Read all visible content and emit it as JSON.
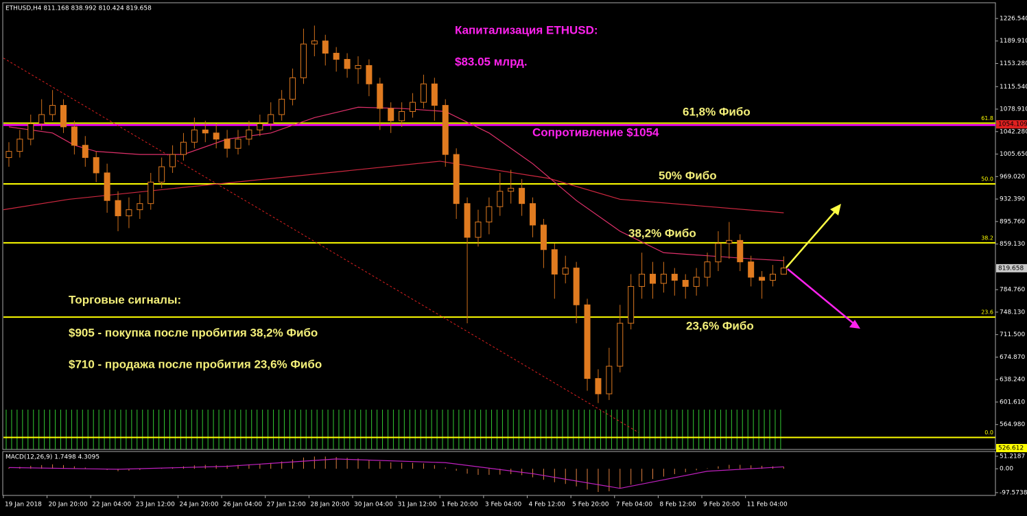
{
  "header": "ETHUSD,H4 811.168 838.992 810.424 819.658",
  "annotations": {
    "cap_title": "Капитализация ETHUSD:",
    "cap_value": "$83.05 млрд.",
    "fib618": "61,8% Фибо",
    "resistance": "Сопротивление $1054",
    "fib50": "50% Фибо",
    "fib382": "38,2% Фибо",
    "fib236": "23,6% Фибо",
    "signals_title": "Торговые сигналы:",
    "signal_buy": "$905 - покупка после пробития 38,2% Фибо",
    "signal_sell": "$710 - продажа после пробития 23,6% Фибо"
  },
  "chart_data": {
    "type": "candlestick",
    "categories": [
      "19 Jan 2018",
      null,
      null,
      null,
      "20 Jan 20:00",
      null,
      null,
      null,
      "22 Jan 04:00",
      null,
      null,
      null,
      "23 Jan 12:00",
      null,
      null,
      null,
      "24 Jan 20:00",
      null,
      null,
      null,
      "26 Jan 04:00",
      null,
      null,
      null,
      "27 Jan 12:00",
      null,
      null,
      null,
      "28 Jan 20:00",
      null,
      null,
      null,
      "30 Jan 04:00",
      null,
      null,
      null,
      "31 Jan 12:00",
      null,
      null,
      null,
      "1 Feb 20:00",
      null,
      null,
      null,
      "3 Feb 04:00",
      null,
      null,
      null,
      "4 Feb 12:00",
      null,
      null,
      null,
      "5 Feb 20:00",
      null,
      null,
      null,
      "7 Feb 04:00",
      null,
      null,
      null,
      "8 Feb 12:00",
      null,
      null,
      null,
      "9 Feb 20:00",
      null,
      null,
      null,
      "11 Feb 04:00",
      null,
      null,
      null
    ],
    "open": [
      1000,
      1010,
      1030,
      1055,
      1070,
      1085,
      1050,
      1020,
      1000,
      975,
      930,
      905,
      915,
      925,
      960,
      985,
      1005,
      1025,
      1045,
      1040,
      1030,
      1015,
      1030,
      1045,
      1055,
      1070,
      1095,
      1130,
      1185,
      1190,
      1170,
      1160,
      1145,
      1150,
      1120,
      1080,
      1060,
      1075,
      1090,
      1120,
      1085,
      1005,
      925,
      870,
      895,
      920,
      945,
      950,
      925,
      890,
      850,
      810,
      820,
      760,
      640,
      615,
      660,
      730,
      790,
      810,
      795,
      810,
      800,
      790,
      805,
      830,
      860,
      865,
      830,
      805,
      800,
      810
    ],
    "high": [
      1025,
      1045,
      1070,
      1095,
      1110,
      1095,
      1060,
      1035,
      1010,
      990,
      945,
      935,
      940,
      975,
      1000,
      1020,
      1040,
      1065,
      1060,
      1055,
      1045,
      1045,
      1060,
      1070,
      1090,
      1110,
      1145,
      1210,
      1215,
      1200,
      1180,
      1170,
      1165,
      1160,
      1130,
      1090,
      1090,
      1105,
      1135,
      1130,
      1095,
      1015,
      935,
      915,
      935,
      975,
      980,
      965,
      935,
      900,
      860,
      840,
      830,
      770,
      655,
      690,
      760,
      810,
      845,
      830,
      830,
      820,
      810,
      820,
      845,
      880,
      895,
      875,
      840,
      815,
      825,
      839
    ],
    "low": [
      985,
      1000,
      1020,
      1045,
      1060,
      1040,
      1005,
      985,
      960,
      910,
      880,
      885,
      900,
      915,
      950,
      975,
      995,
      1015,
      1025,
      1015,
      1000,
      1005,
      1020,
      1035,
      1045,
      1060,
      1085,
      1120,
      1165,
      1150,
      1140,
      1130,
      1120,
      1100,
      1045,
      1040,
      1050,
      1065,
      1080,
      1060,
      985,
      900,
      730,
      855,
      875,
      905,
      925,
      905,
      870,
      820,
      770,
      795,
      730,
      620,
      600,
      605,
      650,
      720,
      770,
      770,
      780,
      775,
      770,
      775,
      790,
      815,
      835,
      815,
      790,
      770,
      790,
      810
    ],
    "close": [
      1010,
      1030,
      1055,
      1070,
      1085,
      1050,
      1020,
      1000,
      975,
      930,
      905,
      915,
      925,
      960,
      985,
      1005,
      1025,
      1045,
      1040,
      1030,
      1015,
      1030,
      1045,
      1055,
      1070,
      1095,
      1130,
      1185,
      1190,
      1170,
      1160,
      1145,
      1150,
      1120,
      1080,
      1060,
      1075,
      1090,
      1120,
      1085,
      1005,
      925,
      870,
      895,
      920,
      945,
      950,
      925,
      890,
      850,
      810,
      820,
      760,
      640,
      615,
      660,
      730,
      790,
      810,
      795,
      810,
      800,
      790,
      805,
      830,
      860,
      865,
      830,
      805,
      800,
      810,
      820
    ],
    "up_color": "#000000",
    "down_color": "#e07b20",
    "wick_color": "#d0701a",
    "xlim": [
      -0.5,
      90.4
    ],
    "ylim": [
      524.4,
      1251.1
    ],
    "yticks": [
      {
        "value": 1226.54,
        "label": "1226.540"
      },
      {
        "value": 1189.91,
        "label": "1189.910"
      },
      {
        "value": 1153.28,
        "label": "1153.280"
      },
      {
        "value": 1115.54,
        "label": "1115.540"
      },
      {
        "value": 1078.91,
        "label": "1078.910"
      },
      {
        "value": 1042.28,
        "label": "1042.280"
      },
      {
        "value": 1005.65,
        "label": "1005.650"
      },
      {
        "value": 969.02,
        "label": "969.020"
      },
      {
        "value": 932.39,
        "label": "932.390"
      },
      {
        "value": 895.76,
        "label": "895.760"
      },
      {
        "value": 859.13,
        "label": "859.130"
      },
      {
        "value": 784.76,
        "label": "784.760"
      },
      {
        "value": 748.13,
        "label": "748.130"
      },
      {
        "value": 711.5,
        "label": "711.500"
      },
      {
        "value": 674.87,
        "label": "674.870"
      },
      {
        "value": 638.24,
        "label": "638.240"
      },
      {
        "value": 601.61,
        "label": "601.610"
      },
      {
        "value": 564.98,
        "label": "564.980"
      }
    ],
    "marked_prices": [
      {
        "value": 1054.109,
        "color": "#e02020"
      },
      {
        "value": 819.658,
        "color": "#c8c8c8"
      },
      {
        "value": 526.612,
        "color": "#ffff00"
      }
    ],
    "levels": [
      {
        "label": "61.8",
        "value": 1056
      },
      {
        "label": "50.0",
        "value": 957
      },
      {
        "label": "38.2",
        "value": 861
      },
      {
        "label": "23.6",
        "value": 740
      },
      {
        "label": "0.0",
        "value": 544
      }
    ],
    "level_color": "#ffff00",
    "resistance_line": {
      "value": 1053,
      "color": "#ff00ff"
    },
    "moving_averages": [
      {
        "color": "#e0306a",
        "x": [
          0,
          4,
          6,
          8,
          12,
          16,
          20,
          24,
          28,
          32,
          36,
          40,
          44,
          48,
          52,
          56,
          60,
          64,
          68,
          71
        ],
        "values": [
          1050,
          1040,
          1020,
          1010,
          1005,
          1005,
          1030,
          1040,
          1065,
          1082,
          1080,
          1075,
          1040,
          990,
          930,
          880,
          845,
          840,
          835,
          832
        ]
      },
      {
        "color": "#d02840",
        "x": [
          -0.5,
          5.5,
          18,
          27.5,
          39.5,
          49.5,
          56,
          71
        ],
        "values": [
          915,
          932,
          955,
          972,
          994,
          966,
          932,
          910
        ]
      }
    ],
    "trendline": {
      "color": "#e02020",
      "x": [
        -0.5,
        57.7
      ],
      "values": [
        1162,
        552
      ]
    },
    "macd": {
      "title": "MACD(12,26,9) 1.7498 4.3095",
      "ylim": [
        -109,
        65
      ],
      "yticks": [
        51.2187,
        {
          "value": 0,
          "label": "0.00"
        },
        -97.5738
      ],
      "hist_color": "#e08040",
      "signal_color": "#c020c0",
      "histogram": [
        5,
        8,
        12,
        15,
        18,
        15,
        10,
        5,
        0,
        -5,
        -10,
        -8,
        -5,
        0,
        3,
        6,
        10,
        14,
        16,
        15,
        14,
        16,
        18,
        20,
        24,
        30,
        38,
        46,
        50,
        50,
        48,
        45,
        42,
        36,
        30,
        26,
        24,
        24,
        22,
        15,
        5,
        -8,
        -20,
        -25,
        -25,
        -24,
        -22,
        -26,
        -35,
        -45,
        -55,
        -62,
        -72,
        -85,
        -95,
        -92,
        -80,
        -65,
        -52,
        -42,
        -32,
        -22,
        -14,
        -6,
        2,
        10,
        16,
        16,
        14,
        12,
        10,
        8
      ],
      "signal": {
        "x": [
          0,
          10,
          20,
          30,
          40,
          48,
          56,
          64,
          71
        ],
        "values": [
          5,
          -2,
          10,
          40,
          25,
          -20,
          -80,
          -10,
          8
        ]
      }
    }
  }
}
